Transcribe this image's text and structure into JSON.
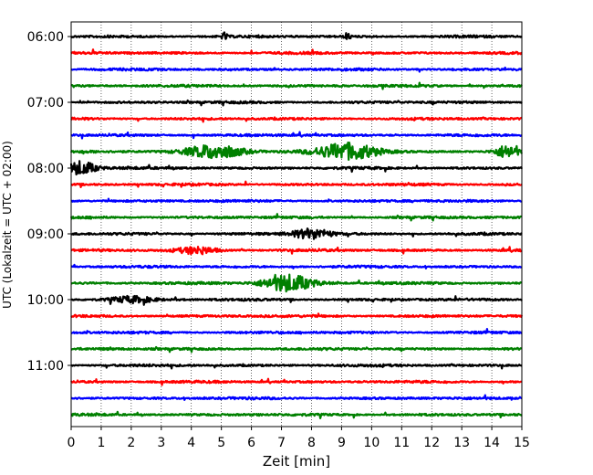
{
  "chart_data": {
    "type": "line",
    "subtype": "helicorder",
    "xlabel": "Zeit  [min]",
    "ylabel": "UTC (Lokalzeit = UTC + 02:00)",
    "xlim": [
      0,
      15
    ],
    "x_ticks": [
      0,
      1,
      2,
      3,
      4,
      5,
      6,
      7,
      8,
      9,
      10,
      11,
      12,
      13,
      14,
      15
    ],
    "grid": "vertical dotted",
    "y_tick_labels": [
      "06:00",
      "07:00",
      "08:00",
      "09:00",
      "10:00",
      "11:00"
    ],
    "y_tick_rows": [
      0,
      4,
      8,
      12,
      16,
      20
    ],
    "row_count": 24,
    "trace_interval_min": 15,
    "start_time": "06:00",
    "colors": [
      "#000000",
      "#ff0000",
      "#0000ff",
      "#008000"
    ],
    "events": [
      {
        "row": 0,
        "minute": 5.1,
        "amplitude": 0.35,
        "duration": 0.15
      },
      {
        "row": 0,
        "minute": 9.2,
        "amplitude": 0.35,
        "duration": 0.15
      },
      {
        "row": 7,
        "minute": 4.8,
        "amplitude": 0.7,
        "duration": 1.5
      },
      {
        "row": 7,
        "minute": 9.2,
        "amplitude": 0.85,
        "duration": 1.6
      },
      {
        "row": 7,
        "minute": 14.5,
        "amplitude": 0.6,
        "duration": 0.6
      },
      {
        "row": 8,
        "minute": 0.3,
        "amplitude": 0.7,
        "duration": 0.8
      },
      {
        "row": 12,
        "minute": 8.0,
        "amplitude": 0.5,
        "duration": 1.0
      },
      {
        "row": 13,
        "minute": 4.2,
        "amplitude": 0.35,
        "duration": 1.0
      },
      {
        "row": 15,
        "minute": 7.2,
        "amplitude": 0.85,
        "duration": 1.3
      },
      {
        "row": 16,
        "minute": 2.0,
        "amplitude": 0.3,
        "duration": 1.2
      }
    ]
  }
}
